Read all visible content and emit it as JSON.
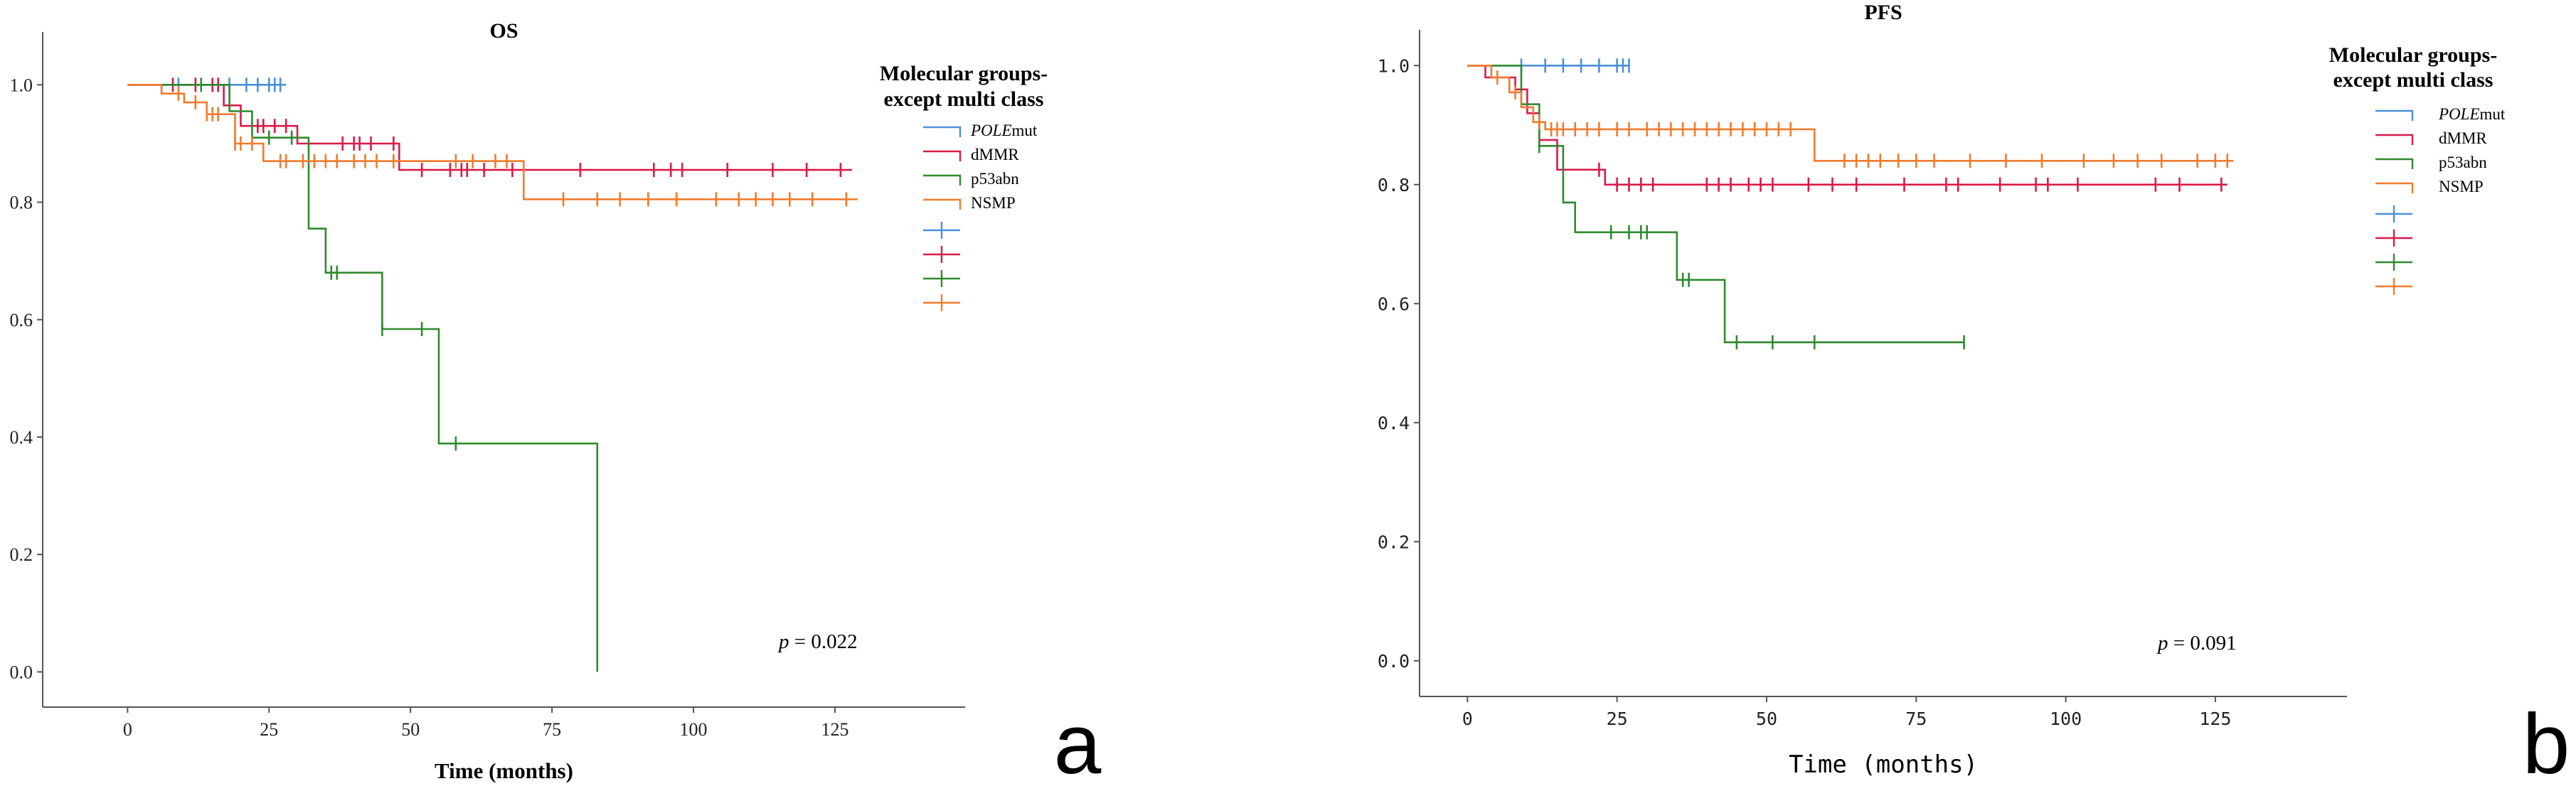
{
  "chart_data": [
    {
      "type": "line",
      "subtype": "kaplan-meier",
      "panel_letter": "a",
      "title": "OS",
      "xlabel": "Time (months)",
      "ylabel": "",
      "xlim": [
        -15,
        148
      ],
      "ylim": [
        -0.06,
        1.09
      ],
      "xticks": [
        0,
        25,
        50,
        75,
        100,
        125
      ],
      "xtick_labels": [
        "0",
        "25",
        "50",
        "75",
        "100",
        "125"
      ],
      "yticks": [
        0.0,
        0.2,
        0.4,
        0.6,
        0.8,
        1.0
      ],
      "ytick_labels": [
        "0.0",
        "0.2",
        "0.4",
        "0.6",
        "0.8",
        "1.0"
      ],
      "grid": false,
      "legend_title_line1": "Molecular groups-",
      "legend_title_line2": "except multi class",
      "legend_position": "right",
      "annotation_prefix": "p",
      "annotation_value": " = 0.022",
      "series": [
        {
          "name": "POLEmut",
          "name_italic": "POLE",
          "name_rest": "mut",
          "color": "#4a90d9",
          "steps": [
            [
              0,
              1.0
            ],
            [
              28,
              1.0
            ]
          ],
          "censors": [
            9,
            12,
            18,
            21,
            23,
            25,
            26,
            27
          ]
        },
        {
          "name": "dMMR",
          "name_italic": "",
          "name_rest": "dMMR",
          "color": "#d81b4a",
          "steps": [
            [
              0,
              1.0
            ],
            [
              17,
              1.0
            ],
            [
              17,
              0.965
            ],
            [
              20,
              0.965
            ],
            [
              20,
              0.93
            ],
            [
              30,
              0.93
            ],
            [
              30,
              0.9
            ],
            [
              48,
              0.9
            ],
            [
              48,
              0.855
            ],
            [
              128,
              0.855
            ]
          ],
          "censors": [
            8,
            12,
            15,
            16,
            23,
            24,
            26,
            28,
            38,
            40,
            41,
            43,
            47,
            52,
            57,
            59,
            60,
            63,
            68,
            80,
            93,
            96,
            98,
            106,
            114,
            120,
            126
          ]
        },
        {
          "name": "p53abn",
          "name_italic": "",
          "name_rest": "p53abn",
          "color": "#2e8b2e",
          "steps": [
            [
              0,
              1.0
            ],
            [
              18,
              1.0
            ],
            [
              18,
              0.955
            ],
            [
              22,
              0.955
            ],
            [
              22,
              0.91
            ],
            [
              32,
              0.91
            ],
            [
              32,
              0.755
            ],
            [
              35,
              0.755
            ],
            [
              35,
              0.68
            ],
            [
              45,
              0.68
            ],
            [
              45,
              0.584
            ],
            [
              55,
              0.584
            ],
            [
              55,
              0.389
            ],
            [
              83,
              0.389
            ],
            [
              83,
              0.0
            ]
          ],
          "censors": [
            13,
            25,
            29,
            36,
            37,
            45,
            52,
            58
          ]
        },
        {
          "name": "NSMP",
          "name_italic": "",
          "name_rest": "NSMP",
          "color": "#f07b2e",
          "steps": [
            [
              0,
              1.0
            ],
            [
              6,
              1.0
            ],
            [
              6,
              0.985
            ],
            [
              10,
              0.985
            ],
            [
              10,
              0.97
            ],
            [
              14,
              0.97
            ],
            [
              14,
              0.95
            ],
            [
              19,
              0.95
            ],
            [
              19,
              0.9
            ],
            [
              24,
              0.9
            ],
            [
              24,
              0.87
            ],
            [
              70,
              0.87
            ],
            [
              70,
              0.805
            ],
            [
              129,
              0.805
            ]
          ],
          "censors": [
            9,
            12,
            14,
            15,
            16,
            19,
            20,
            22,
            27,
            28,
            31,
            33,
            35,
            37,
            40,
            42,
            44,
            47,
            58,
            61,
            65,
            67,
            77,
            83,
            87,
            92,
            97,
            104,
            108,
            111,
            114,
            117,
            121,
            127
          ]
        }
      ]
    },
    {
      "type": "line",
      "subtype": "kaplan-meier",
      "panel_letter": "b",
      "title": "PFS",
      "xlabel": "Time (months)",
      "ylabel": "",
      "xlim": [
        -8,
        147
      ],
      "ylim": [
        -0.06,
        1.06
      ],
      "xticks": [
        0,
        25,
        50,
        75,
        100,
        125
      ],
      "xtick_labels": [
        "0",
        "25",
        "50",
        "75",
        "100",
        "125"
      ],
      "yticks": [
        0.0,
        0.2,
        0.4,
        0.6,
        0.8,
        1.0
      ],
      "ytick_labels": [
        "0.0",
        "0.2",
        "0.4",
        "0.6",
        "0.8",
        "1.0"
      ],
      "grid": false,
      "legend_title_line1": "Molecular groups-",
      "legend_title_line2": "except multi class",
      "legend_position": "right",
      "annotation_prefix": "p",
      "annotation_value": " = 0.091",
      "series": [
        {
          "name": "POLEmut",
          "name_italic": "POLE",
          "name_rest": "mut",
          "color": "#4a90d9",
          "steps": [
            [
              0,
              1.0
            ],
            [
              27,
              1.0
            ]
          ],
          "censors": [
            9,
            13,
            16,
            19,
            22,
            25,
            26,
            27
          ]
        },
        {
          "name": "dMMR",
          "name_italic": "",
          "name_rest": "dMMR",
          "color": "#d81b4a",
          "steps": [
            [
              0,
              1.0
            ],
            [
              3,
              1.0
            ],
            [
              3,
              0.98
            ],
            [
              8,
              0.98
            ],
            [
              8,
              0.96
            ],
            [
              10,
              0.96
            ],
            [
              10,
              0.92
            ],
            [
              12,
              0.92
            ],
            [
              12,
              0.875
            ],
            [
              15,
              0.875
            ],
            [
              15,
              0.825
            ],
            [
              23,
              0.825
            ],
            [
              23,
              0.8
            ],
            [
              127,
              0.8
            ]
          ],
          "censors": [
            12,
            22,
            25,
            27,
            29,
            31,
            40,
            42,
            44,
            47,
            49,
            51,
            57,
            61,
            65,
            73,
            80,
            82,
            89,
            95,
            97,
            102,
            115,
            119,
            126
          ]
        },
        {
          "name": "p53abn",
          "name_italic": "",
          "name_rest": "p53abn",
          "color": "#2e8b2e",
          "steps": [
            [
              0,
              1.0
            ],
            [
              9,
              1.0
            ],
            [
              9,
              0.935
            ],
            [
              12,
              0.935
            ],
            [
              12,
              0.865
            ],
            [
              16,
              0.865
            ],
            [
              16,
              0.77
            ],
            [
              18,
              0.77
            ],
            [
              18,
              0.72
            ],
            [
              35,
              0.72
            ],
            [
              35,
              0.64
            ],
            [
              43,
              0.64
            ],
            [
              43,
              0.535
            ],
            [
              83,
              0.535
            ]
          ],
          "censors": [
            12,
            24,
            27,
            29,
            30,
            36,
            37,
            45,
            51,
            58,
            83
          ]
        },
        {
          "name": "NSMP",
          "name_italic": "",
          "name_rest": "NSMP",
          "color": "#f07b2e",
          "steps": [
            [
              0,
              1.0
            ],
            [
              4,
              1.0
            ],
            [
              4,
              0.98
            ],
            [
              7,
              0.98
            ],
            [
              7,
              0.955
            ],
            [
              9,
              0.955
            ],
            [
              9,
              0.93
            ],
            [
              11,
              0.93
            ],
            [
              11,
              0.905
            ],
            [
              13,
              0.905
            ],
            [
              13,
              0.893
            ],
            [
              58,
              0.893
            ],
            [
              58,
              0.84
            ],
            [
              128,
              0.84
            ]
          ],
          "censors": [
            5,
            8,
            12,
            14,
            15,
            16,
            18,
            20,
            22,
            25,
            27,
            30,
            32,
            34,
            36,
            38,
            40,
            42,
            44,
            46,
            48,
            50,
            52,
            54,
            63,
            65,
            67,
            69,
            72,
            75,
            78,
            84,
            90,
            96,
            103,
            108,
            112,
            116,
            122,
            125,
            127
          ]
        }
      ]
    }
  ]
}
